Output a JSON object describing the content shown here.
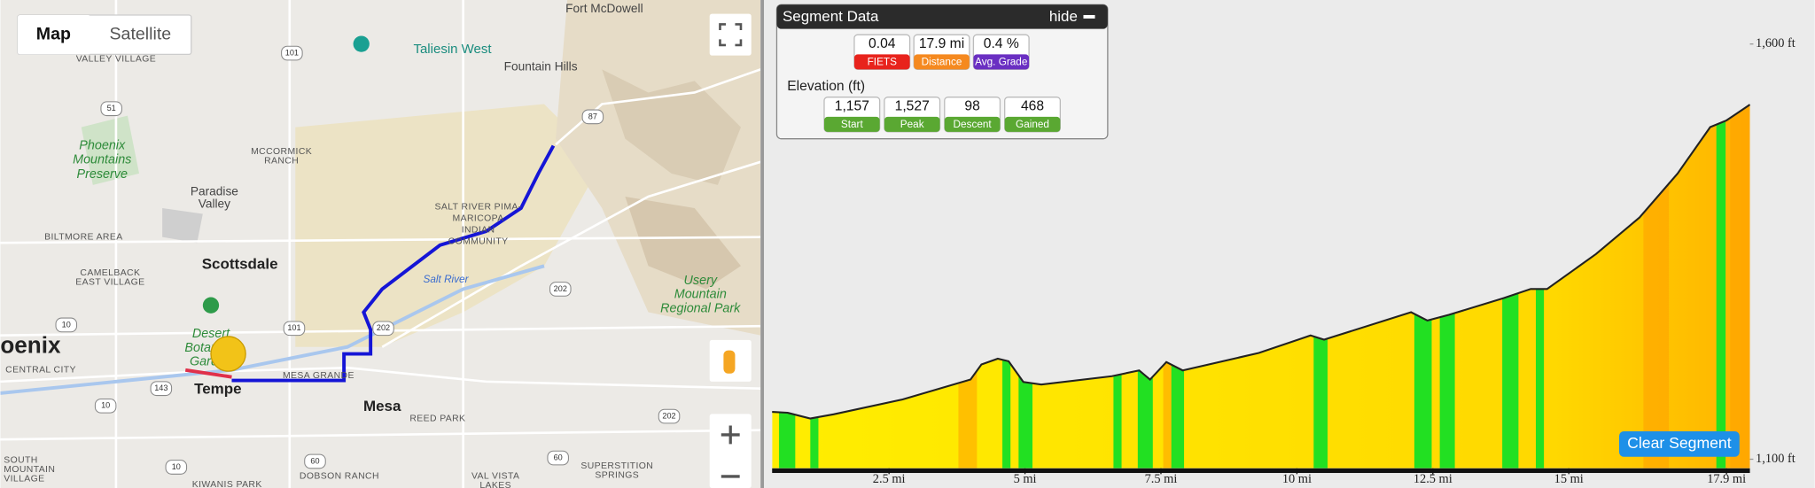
{
  "map": {
    "controls": {
      "map": "Map",
      "satellite": "Satellite"
    },
    "places": [
      [
        "Fort McDowell"
      ],
      [
        "Taliesin West"
      ],
      [
        "VALLEY VILLAGE"
      ],
      [
        "Fountain Hills"
      ],
      [
        "Phoenix",
        "Mountains",
        "Preserve"
      ],
      [
        "MCCORMICK",
        "RANCH"
      ],
      [
        "Paradise",
        "Valley"
      ],
      [
        "SALT RIVER PIMA-",
        "MARICOPA",
        "INDIAN",
        "COMMUNITY"
      ],
      [
        "BILTMORE AREA"
      ],
      [
        "Scottsdale"
      ],
      [
        "CAMELBACK",
        "EAST VILLAGE"
      ],
      [
        "Salt River"
      ],
      [
        "Usery",
        "Mountain",
        "Regional Park"
      ],
      [
        "oenix"
      ],
      [
        "Desert",
        "Botanical",
        "Garden"
      ],
      [
        "CENTRAL CITY"
      ],
      [
        "MESA GRANDE"
      ],
      [
        "Tempe"
      ],
      [
        "Mesa"
      ],
      [
        "REED PARK"
      ],
      [
        "SOUTH",
        "MOUNTAIN",
        "VILLAGE"
      ],
      [
        "DOBSON RANCH"
      ],
      [
        "SUPERSTITION",
        "SPRINGS"
      ],
      [
        "VAL VISTA",
        "LAKES"
      ],
      [
        "KIWANIS PARK"
      ]
    ],
    "shields": [
      "101",
      "51",
      "87",
      "202",
      "101",
      "202",
      "10",
      "143",
      "10",
      "202",
      "60",
      "60",
      "10"
    ]
  },
  "segment_data": {
    "title": "Segment Data",
    "hide": "hide",
    "stats": [
      {
        "value": "0.04",
        "label": "FIETS"
      },
      {
        "value": "17.9 mi",
        "label": "Distance"
      },
      {
        "value": "0.4 %",
        "label": "Avg. Grade"
      }
    ],
    "elevation_title": "Elevation (ft)",
    "elevation_stats": [
      {
        "value": "1,157",
        "label": "Start"
      },
      {
        "value": "1,527",
        "label": "Peak"
      },
      {
        "value": "98",
        "label": "Descent"
      },
      {
        "value": "468",
        "label": "Gained"
      }
    ]
  },
  "chart_data": {
    "type": "area",
    "color": "#ffee00",
    "x": [
      0.35,
      0.63,
      1.05,
      1.48,
      2.75,
      4.0,
      4.2,
      4.5,
      4.7,
      4.97,
      5.3,
      6.6,
      7.1,
      7.3,
      7.6,
      7.9,
      9.3,
      10.25,
      10.5,
      12.1,
      12.4,
      12.8,
      13.8,
      14.3,
      14.6,
      15.5,
      16.3,
      17.0,
      17.6,
      17.9,
      18.33
    ],
    "values": [
      1157,
      1156,
      1149,
      1154,
      1172,
      1196,
      1214,
      1221,
      1218,
      1193,
      1190,
      1200,
      1207,
      1196,
      1217,
      1207,
      1228,
      1249,
      1244,
      1277,
      1267,
      1274,
      1294,
      1305,
      1305,
      1347,
      1391,
      1444,
      1500,
      1508,
      1527
    ],
    "xlim": [
      0.35,
      18.33
    ],
    "ylim": [
      1089,
      1653
    ],
    "xticks": [
      {
        "value": 2.5,
        "label": "2.5 mi"
      },
      {
        "value": 5,
        "label": "5 mi"
      },
      {
        "value": 7.5,
        "label": "7.5 mi"
      },
      {
        "value": 10,
        "label": "10 mi"
      },
      {
        "value": 12.5,
        "label": "12.5 mi"
      },
      {
        "value": 15,
        "label": "15 mi"
      },
      {
        "value": 17.9,
        "label": "17.9 mi"
      }
    ],
    "yticks": [
      {
        "value": 1100,
        "label": "1,100 ft"
      },
      {
        "value": 1600,
        "label": "1,600 ft"
      }
    ]
  },
  "clear_segment": "Clear Segment"
}
